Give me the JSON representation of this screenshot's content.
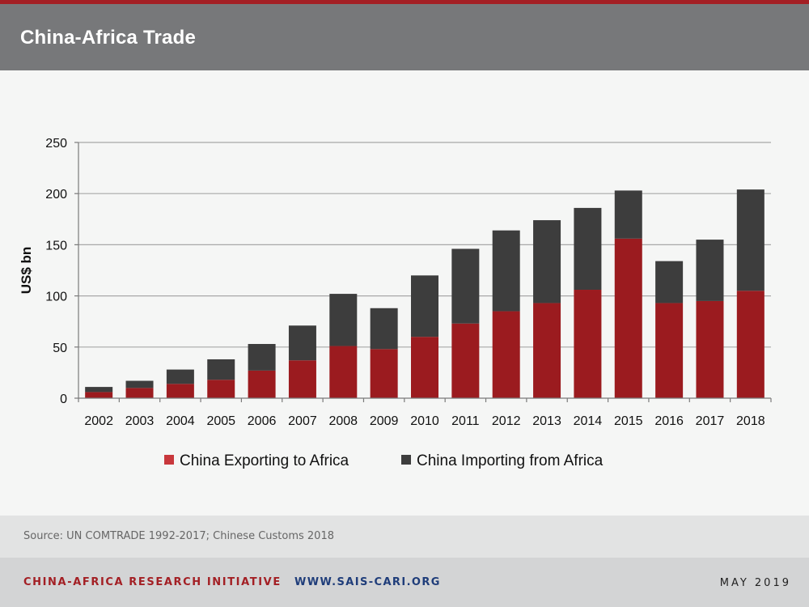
{
  "header": {
    "title": "China-Africa Trade"
  },
  "chart_data": {
    "type": "bar",
    "stacked": true,
    "categories": [
      "2002",
      "2003",
      "2004",
      "2005",
      "2006",
      "2007",
      "2008",
      "2009",
      "2010",
      "2011",
      "2012",
      "2013",
      "2014",
      "2015",
      "2016",
      "2017",
      "2018"
    ],
    "series": [
      {
        "name": "China Exporting to Africa",
        "color": "#9b1b1f",
        "values": [
          6,
          10,
          14,
          18,
          27,
          37,
          51,
          48,
          60,
          73,
          85,
          93,
          106,
          156,
          93,
          95,
          105
        ]
      },
      {
        "name": "China Importing from Africa",
        "color": "#3d3d3d",
        "values": [
          5,
          7,
          14,
          20,
          26,
          34,
          51,
          40,
          60,
          73,
          79,
          81,
          80,
          47,
          41,
          60,
          99
        ]
      }
    ],
    "title": "",
    "xlabel": "",
    "ylabel": "US$ bn",
    "ylim": [
      0,
      250
    ],
    "yticks": [
      0,
      50,
      100,
      150,
      200,
      250
    ],
    "grid": true,
    "legend_position": "bottom"
  },
  "footer": {
    "source": "Source: UN COMTRADE 1992-2017; Chinese Customs 2018",
    "org": "CHINA-AFRICA RESEARCH INITIATIVE",
    "url": "WWW.SAIS-CARI.ORG",
    "date": "MAY 2019"
  }
}
